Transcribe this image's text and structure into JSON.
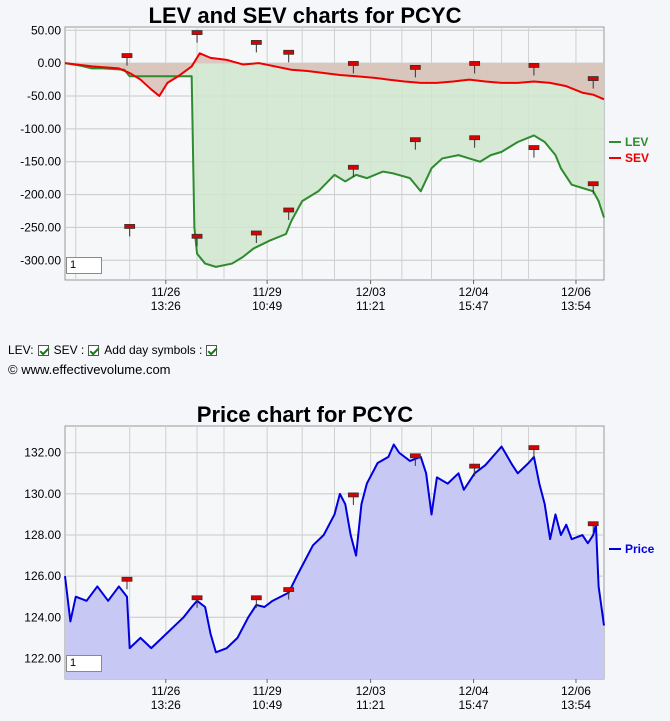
{
  "lev_chart": {
    "title": "LEV and SEV charts for PCYC",
    "zoom_value": "1"
  },
  "price_chart": {
    "title": "Price chart for PCYC",
    "zoom_value": "1"
  },
  "controls": {
    "lev_label": "LEV:",
    "sev_label": "SEV :",
    "day_symbols_label": "Add day symbols :",
    "lev_checked": true,
    "sev_checked": true,
    "day_symbols_checked": true
  },
  "copyright": "© www.effectivevolume.com",
  "colors": {
    "lev": "#2e8b2e",
    "sev": "#ee0000",
    "price": "#0000dd",
    "price_fill": "#c8c8f4",
    "lev_fill": "#cfe6cf",
    "sev_fill": "#d9c0b8",
    "flag": "#dd0000"
  },
  "chart_data": [
    {
      "type": "line",
      "title": "LEV and SEV charts for PCYC",
      "ylim": [
        -330,
        55
      ],
      "y_ticks": [
        "50.00",
        "0.00",
        "-50.00",
        "-100.00",
        "-150.00",
        "-200.00",
        "-250.00",
        "-300.00"
      ],
      "x_ticks": [
        {
          "date": "11/26",
          "time": "13:26"
        },
        {
          "date": "11/29",
          "time": "10:49"
        },
        {
          "date": "12/03",
          "time": "11:21"
        },
        {
          "date": "12/04",
          "time": "15:47"
        },
        {
          "date": "12/06",
          "time": "13:54"
        }
      ],
      "series": [
        {
          "name": "LEV",
          "points": [
            [
              0,
              0
            ],
            [
              0.03,
              -4
            ],
            [
              0.05,
              -8
            ],
            [
              0.07,
              -8
            ],
            [
              0.11,
              -10
            ],
            [
              0.12,
              -20
            ],
            [
              0.18,
              -20
            ],
            [
              0.235,
              -20
            ],
            [
              0.24,
              -250
            ],
            [
              0.245,
              -290
            ],
            [
              0.26,
              -305
            ],
            [
              0.28,
              -310
            ],
            [
              0.31,
              -305
            ],
            [
              0.33,
              -295
            ],
            [
              0.35,
              -282
            ],
            [
              0.38,
              -270
            ],
            [
              0.41,
              -260
            ],
            [
              0.42,
              -240
            ],
            [
              0.44,
              -210
            ],
            [
              0.47,
              -195
            ],
            [
              0.5,
              -170
            ],
            [
              0.52,
              -180
            ],
            [
              0.54,
              -170
            ],
            [
              0.56,
              -175
            ],
            [
              0.59,
              -165
            ],
            [
              0.61,
              -168
            ],
            [
              0.64,
              -175
            ],
            [
              0.66,
              -195
            ],
            [
              0.68,
              -160
            ],
            [
              0.7,
              -145
            ],
            [
              0.73,
              -140
            ],
            [
              0.75,
              -145
            ],
            [
              0.77,
              -150
            ],
            [
              0.79,
              -140
            ],
            [
              0.81,
              -135
            ],
            [
              0.84,
              -120
            ],
            [
              0.87,
              -110
            ],
            [
              0.89,
              -120
            ],
            [
              0.91,
              -140
            ],
            [
              0.92,
              -160
            ],
            [
              0.94,
              -185
            ],
            [
              0.96,
              -190
            ],
            [
              0.98,
              -195
            ],
            [
              0.99,
              -210
            ],
            [
              1.0,
              -235
            ]
          ]
        },
        {
          "name": "SEV",
          "points": [
            [
              0,
              0
            ],
            [
              0.05,
              -5
            ],
            [
              0.1,
              -8
            ],
            [
              0.12,
              -15
            ],
            [
              0.14,
              -25
            ],
            [
              0.16,
              -40
            ],
            [
              0.175,
              -50
            ],
            [
              0.19,
              -30
            ],
            [
              0.21,
              -20
            ],
            [
              0.235,
              -5
            ],
            [
              0.25,
              15
            ],
            [
              0.27,
              8
            ],
            [
              0.3,
              5
            ],
            [
              0.33,
              -2
            ],
            [
              0.36,
              0
            ],
            [
              0.39,
              -5
            ],
            [
              0.42,
              -10
            ],
            [
              0.45,
              -12
            ],
            [
              0.48,
              -15
            ],
            [
              0.51,
              -18
            ],
            [
              0.54,
              -20
            ],
            [
              0.57,
              -22
            ],
            [
              0.6,
              -25
            ],
            [
              0.63,
              -28
            ],
            [
              0.66,
              -30
            ],
            [
              0.69,
              -30
            ],
            [
              0.72,
              -28
            ],
            [
              0.75,
              -25
            ],
            [
              0.78,
              -28
            ],
            [
              0.81,
              -30
            ],
            [
              0.84,
              -30
            ],
            [
              0.87,
              -28
            ],
            [
              0.9,
              -30
            ],
            [
              0.93,
              -35
            ],
            [
              0.96,
              -45
            ],
            [
              0.98,
              -48
            ],
            [
              1.0,
              -55
            ]
          ]
        }
      ],
      "day_markers": [
        [
          0.115,
          10
        ],
        [
          0.245,
          45
        ],
        [
          0.355,
          30
        ],
        [
          0.415,
          15
        ],
        [
          0.535,
          -2
        ],
        [
          0.65,
          -8
        ],
        [
          0.76,
          -2
        ],
        [
          0.87,
          -5
        ],
        [
          0.12,
          -250
        ],
        [
          0.245,
          -265
        ],
        [
          0.355,
          -260
        ],
        [
          0.415,
          -225
        ],
        [
          0.535,
          -160
        ],
        [
          0.65,
          -118
        ],
        [
          0.76,
          -115
        ],
        [
          0.87,
          -130
        ],
        [
          0.98,
          -185
        ],
        [
          0.98,
          -25
        ]
      ]
    },
    {
      "type": "area",
      "title": "Price chart for PCYC",
      "ylim": [
        121.0,
        133.3
      ],
      "y_ticks": [
        "132.00",
        "130.00",
        "128.00",
        "126.00",
        "124.00",
        "122.00"
      ],
      "x_ticks": [
        {
          "date": "11/26",
          "time": "13:26"
        },
        {
          "date": "11/29",
          "time": "10:49"
        },
        {
          "date": "12/03",
          "time": "11:21"
        },
        {
          "date": "12/04",
          "time": "15:47"
        },
        {
          "date": "12/06",
          "time": "13:54"
        }
      ],
      "series": [
        {
          "name": "Price",
          "points": [
            [
              0,
              126.0
            ],
            [
              0.01,
              123.8
            ],
            [
              0.02,
              125.0
            ],
            [
              0.04,
              124.8
            ],
            [
              0.06,
              125.5
            ],
            [
              0.08,
              124.8
            ],
            [
              0.1,
              125.5
            ],
            [
              0.115,
              125.0
            ],
            [
              0.12,
              122.5
            ],
            [
              0.14,
              123.0
            ],
            [
              0.16,
              122.5
            ],
            [
              0.18,
              123.0
            ],
            [
              0.2,
              123.5
            ],
            [
              0.22,
              124.0
            ],
            [
              0.235,
              124.5
            ],
            [
              0.245,
              124.8
            ],
            [
              0.26,
              124.5
            ],
            [
              0.27,
              123.2
            ],
            [
              0.28,
              122.3
            ],
            [
              0.3,
              122.5
            ],
            [
              0.32,
              123.0
            ],
            [
              0.33,
              123.5
            ],
            [
              0.34,
              124.0
            ],
            [
              0.355,
              124.6
            ],
            [
              0.37,
              124.5
            ],
            [
              0.385,
              124.8
            ],
            [
              0.4,
              125.0
            ],
            [
              0.415,
              125.2
            ],
            [
              0.43,
              126.0
            ],
            [
              0.44,
              126.5
            ],
            [
              0.46,
              127.5
            ],
            [
              0.48,
              128.0
            ],
            [
              0.5,
              129.0
            ],
            [
              0.51,
              130.0
            ],
            [
              0.52,
              129.5
            ],
            [
              0.53,
              128.0
            ],
            [
              0.54,
              127.0
            ],
            [
              0.55,
              129.5
            ],
            [
              0.56,
              130.5
            ],
            [
              0.58,
              131.5
            ],
            [
              0.6,
              131.8
            ],
            [
              0.61,
              132.4
            ],
            [
              0.62,
              132.0
            ],
            [
              0.64,
              131.6
            ],
            [
              0.66,
              131.8
            ],
            [
              0.67,
              131.0
            ],
            [
              0.68,
              129.0
            ],
            [
              0.69,
              130.8
            ],
            [
              0.71,
              130.5
            ],
            [
              0.73,
              131.0
            ],
            [
              0.74,
              130.2
            ],
            [
              0.76,
              131.0
            ],
            [
              0.78,
              131.4
            ],
            [
              0.8,
              132.0
            ],
            [
              0.81,
              132.3
            ],
            [
              0.83,
              131.4
            ],
            [
              0.84,
              131.0
            ],
            [
              0.86,
              131.5
            ],
            [
              0.87,
              131.8
            ],
            [
              0.88,
              130.5
            ],
            [
              0.89,
              129.5
            ],
            [
              0.9,
              127.8
            ],
            [
              0.91,
              129.0
            ],
            [
              0.92,
              128.0
            ],
            [
              0.93,
              128.5
            ],
            [
              0.94,
              127.8
            ],
            [
              0.96,
              128.0
            ],
            [
              0.97,
              127.6
            ],
            [
              0.98,
              128.0
            ],
            [
              0.985,
              128.5
            ],
            [
              0.99,
              125.5
            ],
            [
              1.0,
              123.6
            ]
          ]
        }
      ],
      "day_markers": [
        [
          0.115,
          125.8
        ],
        [
          0.245,
          124.9
        ],
        [
          0.355,
          124.9
        ],
        [
          0.415,
          125.3
        ],
        [
          0.535,
          129.9
        ],
        [
          0.65,
          131.8
        ],
        [
          0.76,
          131.3
        ],
        [
          0.87,
          132.2
        ],
        [
          0.98,
          128.5
        ]
      ]
    }
  ]
}
